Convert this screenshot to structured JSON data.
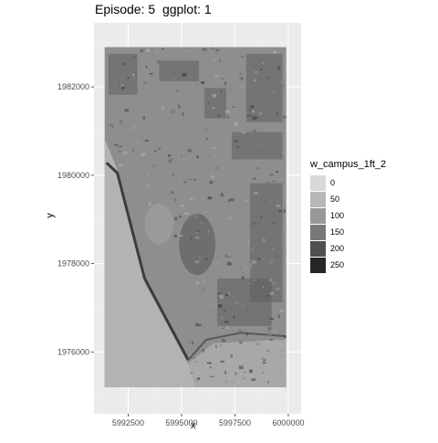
{
  "chart_data": {
    "type": "raster",
    "title": "Episode: 5  ggplot: 1",
    "xlabel": "x",
    "ylabel": "y",
    "xlim": [
      5990900,
      6000600
    ],
    "ylim": [
      1974600,
      1983450
    ],
    "x_ticks": [
      {
        "value": 5992500,
        "label": "5992500"
      },
      {
        "value": 5995000,
        "label": "5995000"
      },
      {
        "value": 5997500,
        "label": "5997500"
      },
      {
        "value": 6000000,
        "label": "6000000"
      }
    ],
    "y_ticks": [
      {
        "value": 1976000,
        "label": "1976000"
      },
      {
        "value": 1978000,
        "label": "1978000"
      },
      {
        "value": 1980000,
        "label": "1980000"
      },
      {
        "value": 1982000,
        "label": "1982000"
      }
    ],
    "raster_extent": {
      "xmin": 5991400,
      "xmax": 5999900,
      "ymin": 1975200,
      "ymax": 1982900
    },
    "grid": true,
    "legend": {
      "title": "w_campus_1ft_2",
      "position": "right",
      "entries": [
        {
          "label": "0",
          "color": "#d9d9d9"
        },
        {
          "label": "50",
          "color": "#b8b8b8"
        },
        {
          "label": "100",
          "color": "#989898"
        },
        {
          "label": "150",
          "color": "#787878"
        },
        {
          "label": "200",
          "color": "#505050"
        },
        {
          "label": "250",
          "color": "#262626"
        }
      ]
    },
    "colors": {
      "panel": "#ebebeb",
      "grid_major": "#ffffff",
      "grid_minor": "#f3f3f3",
      "raster_base": "#8e8e8e"
    }
  }
}
